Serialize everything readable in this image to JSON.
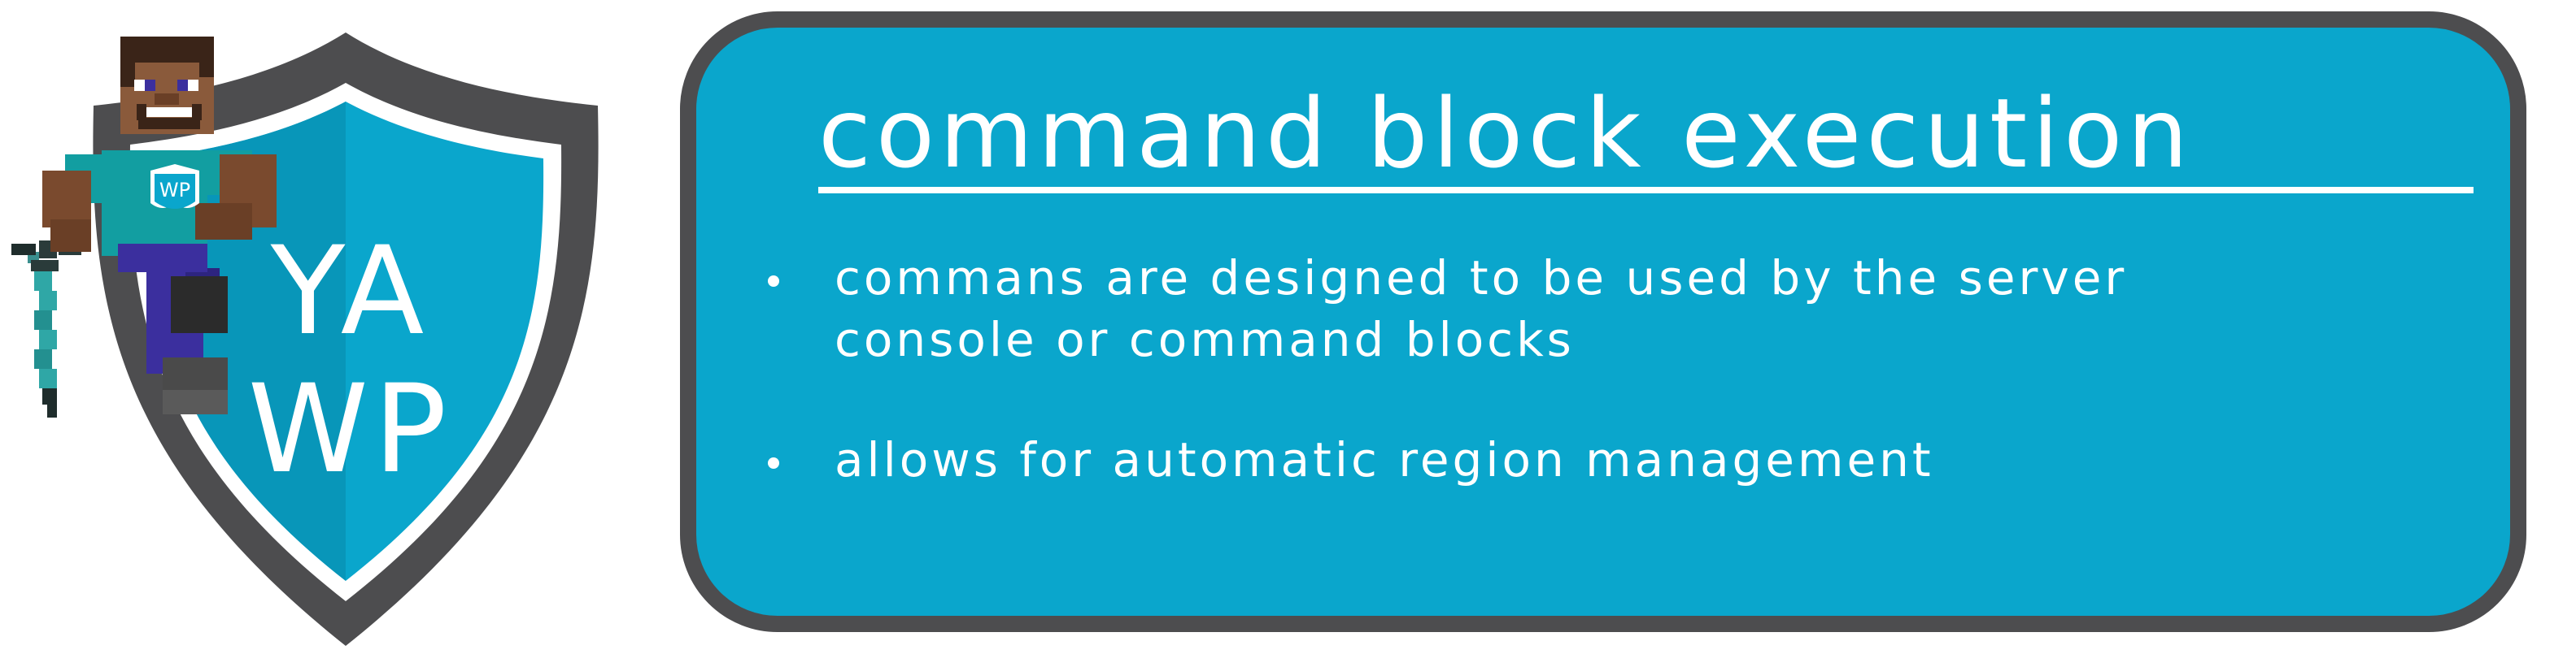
{
  "logo": {
    "text_top": "YA",
    "text_bottom": "WP",
    "badge_text": "WP",
    "colors": {
      "shield_fill": "#0aa6cc",
      "shield_border": "#4d4d4f",
      "character_shirt": "#129ea1",
      "character_pants": "#3b2f9e",
      "sword": "#2fa7a6"
    }
  },
  "panel": {
    "title": "COMMAND BLOCK EXECUTION",
    "bullets": [
      {
        "lines": [
          "COMMANS ARE DESIGNED TO BE USED BY THE SERVER",
          "CONSOLE OR COMMAND BLOCKS"
        ]
      },
      {
        "lines": [
          "ALLOWS FOR AUTOMATIC REGION MANAGEMENT"
        ]
      }
    ],
    "colors": {
      "background": "#0aa6cc",
      "border": "#4d4d4f",
      "text": "#ffffff"
    }
  }
}
